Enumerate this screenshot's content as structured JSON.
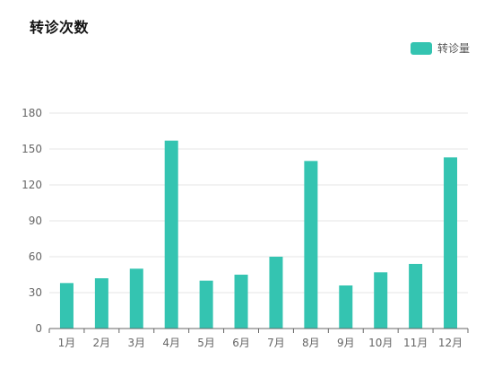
{
  "chart_data": {
    "type": "bar",
    "title": "转诊次数",
    "xlabel": "",
    "ylabel": "",
    "categories": [
      "1月",
      "2月",
      "3月",
      "4月",
      "5月",
      "6月",
      "7月",
      "8月",
      "9月",
      "10月",
      "11月",
      "12月"
    ],
    "series": [
      {
        "name": "转诊量",
        "values": [
          38,
          42,
          50,
          157,
          40,
          45,
          60,
          140,
          36,
          47,
          54,
          143
        ]
      }
    ],
    "ylim": [
      0,
      180
    ],
    "yticks": [
      "0",
      "30",
      "60",
      "90",
      "120",
      "150",
      "180"
    ],
    "grid": true,
    "legend_position": "top-right"
  },
  "colors": {
    "bar": "#34c4b1",
    "grid": "#e6e6e6",
    "axis": "#666666"
  }
}
